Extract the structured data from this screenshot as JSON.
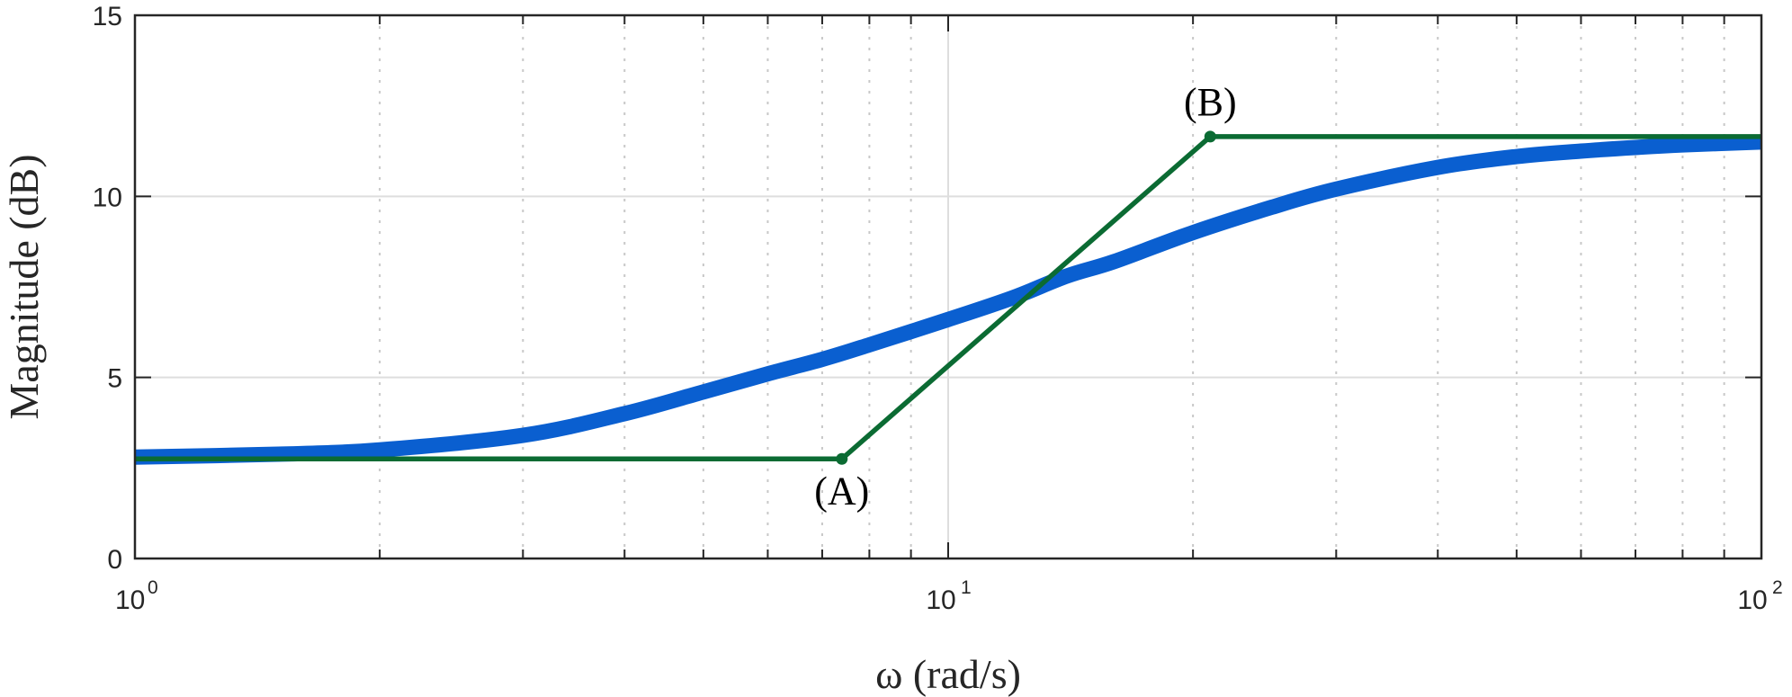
{
  "chart_data": {
    "type": "line",
    "xlabel": "ω (rad/s)",
    "ylabel": "Magnitude (dB)",
    "x_scale": "log",
    "xlim": [
      1,
      100
    ],
    "ylim": [
      0,
      15
    ],
    "y_ticks": [
      0,
      5,
      10,
      15
    ],
    "x_ticks": [
      {
        "base": "10",
        "exp": "0",
        "value": 1
      },
      {
        "base": "10",
        "exp": "1",
        "value": 10
      },
      {
        "base": "10",
        "exp": "2",
        "value": 100
      }
    ],
    "grid": true,
    "minor_grid": true,
    "series": [
      {
        "style": "thick",
        "color": "#0a5fd0",
        "x": [
          1,
          1.5,
          2,
          3,
          4,
          5,
          6,
          7,
          8,
          10,
          12,
          14,
          16,
          20,
          25,
          30,
          40,
          50,
          60,
          70,
          80,
          100
        ],
        "y": [
          2.8,
          2.88,
          3.0,
          3.4,
          4.0,
          4.6,
          5.1,
          5.5,
          5.9,
          6.6,
          7.2,
          7.8,
          8.2,
          9.0,
          9.7,
          10.2,
          10.8,
          11.1,
          11.25,
          11.35,
          11.42,
          11.5
        ]
      },
      {
        "style": "thin",
        "color": "#0b6b33",
        "x": [
          1,
          7.4,
          21.0,
          100
        ],
        "y": [
          2.75,
          2.75,
          11.65,
          11.65
        ]
      }
    ],
    "markers": [
      {
        "x": 7.4,
        "y": 2.75
      },
      {
        "x": 21.0,
        "y": 11.65
      }
    ],
    "annotations": [
      {
        "text": "(A)",
        "x": 7.4,
        "y": 2.75,
        "position": "below"
      },
      {
        "text": "(B)",
        "x": 21.0,
        "y": 11.65,
        "position": "above"
      }
    ]
  }
}
